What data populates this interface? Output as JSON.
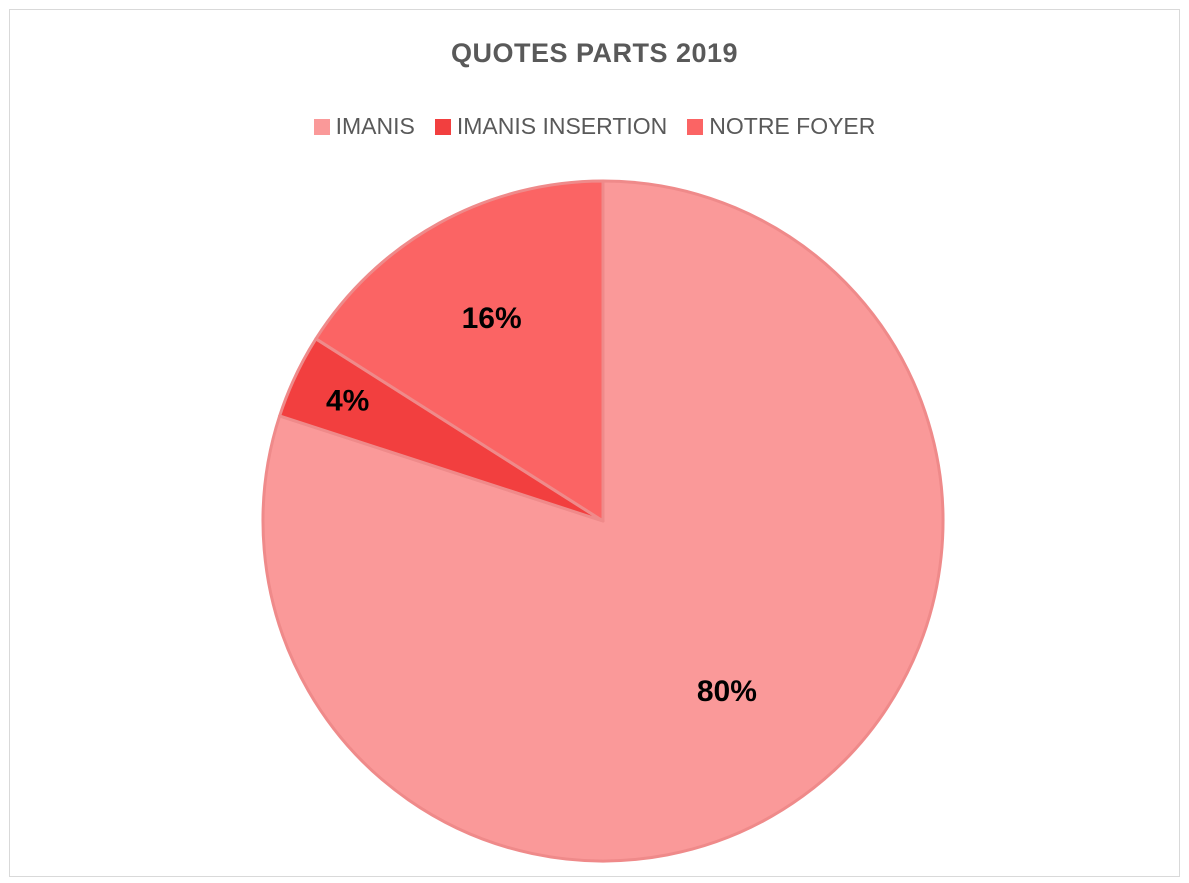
{
  "chart_data": {
    "type": "pie",
    "title": "QUOTES PARTS 2019",
    "legend_placement": "top",
    "categories": [
      "IMANIS",
      "IMANIS INSERTION",
      "NOTRE FOYER"
    ],
    "values": [
      80,
      4,
      16
    ],
    "labels": [
      "80%",
      "4%",
      "16%"
    ],
    "colors": [
      "#fa9999",
      "#f23f3f",
      "#fb6464"
    ]
  }
}
